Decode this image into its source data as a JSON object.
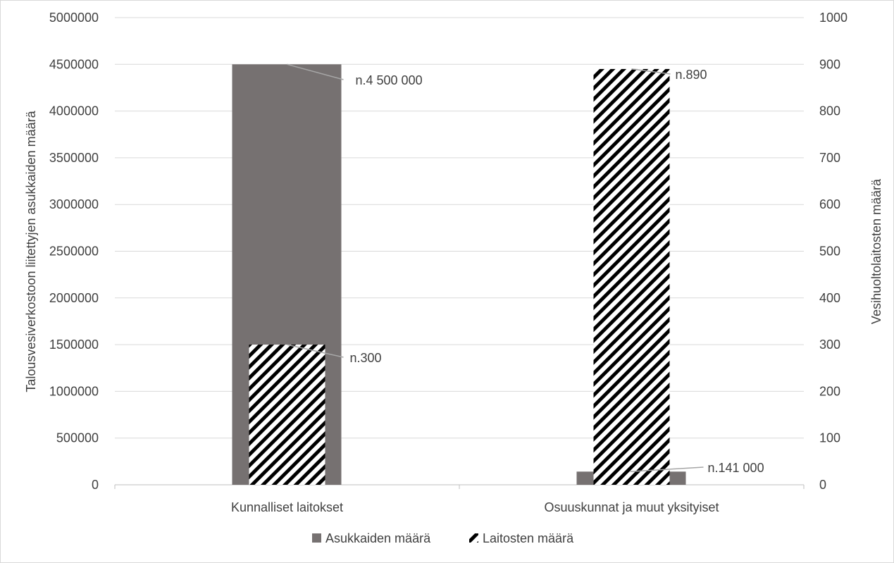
{
  "chart_data": {
    "type": "bar",
    "categories": [
      "Kunnalliset laitokset",
      "Osuuskunnat ja muut yksityiset"
    ],
    "series": [
      {
        "name": "Asukkaiden määrä",
        "axis": "left",
        "values": [
          4500000,
          141000
        ],
        "color": "#767171",
        "pattern": "solid",
        "data_labels": [
          "n.4 500 000",
          "n.141 000"
        ]
      },
      {
        "name": "Laitosten määrä",
        "axis": "right",
        "values": [
          300,
          890
        ],
        "color": "#000000",
        "pattern": "wide-downward-diagonal",
        "data_labels": [
          "n.300",
          "n.890"
        ]
      }
    ],
    "ylabel": "Talousvesiverkostoon liitettyjen asukkaiden määrä",
    "ylabel_right": "Vesihuoltolaitosten määrä",
    "ylim": [
      0,
      5000000
    ],
    "ylim_right": [
      0,
      1000
    ],
    "yticks": [
      "0",
      "500000",
      "1000000",
      "1500000",
      "2000000",
      "2500000",
      "3000000",
      "3500000",
      "4000000",
      "4500000",
      "5000000"
    ],
    "yticks_right": [
      "0",
      "100",
      "200",
      "300",
      "400",
      "500",
      "600",
      "700",
      "800",
      "900",
      "1000"
    ],
    "grid": true,
    "legend": "bottom"
  }
}
